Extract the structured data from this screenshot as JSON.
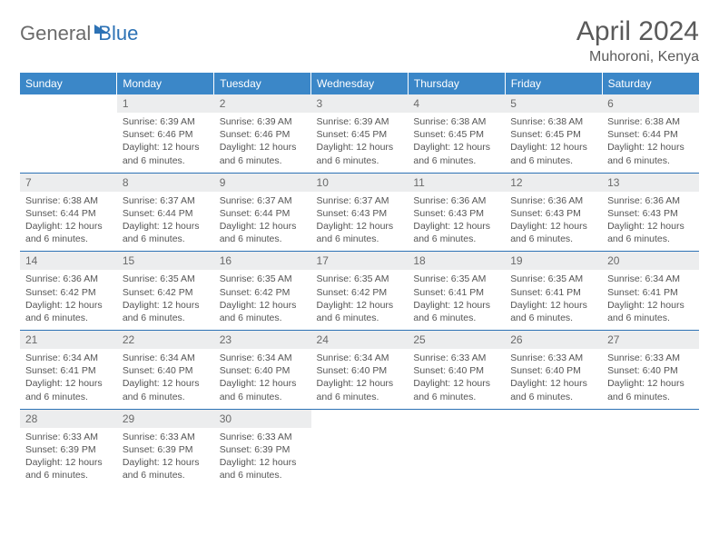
{
  "logo": {
    "part1": "General",
    "part2": "Blue"
  },
  "title": "April 2024",
  "location": "Muhoroni, Kenya",
  "colors": {
    "header_bg": "#3b87c8",
    "header_text": "#ffffff",
    "daynum_bg": "#ecedee",
    "row_border": "#2d72b5",
    "logo_blue": "#2d72b5",
    "text_gray": "#5a5a5a"
  },
  "dayHeaders": [
    "Sunday",
    "Monday",
    "Tuesday",
    "Wednesday",
    "Thursday",
    "Friday",
    "Saturday"
  ],
  "weeks": [
    [
      null,
      {
        "n": "1",
        "sr": "Sunrise: 6:39 AM",
        "ss": "Sunset: 6:46 PM",
        "dl": "Daylight: 12 hours and 6 minutes."
      },
      {
        "n": "2",
        "sr": "Sunrise: 6:39 AM",
        "ss": "Sunset: 6:46 PM",
        "dl": "Daylight: 12 hours and 6 minutes."
      },
      {
        "n": "3",
        "sr": "Sunrise: 6:39 AM",
        "ss": "Sunset: 6:45 PM",
        "dl": "Daylight: 12 hours and 6 minutes."
      },
      {
        "n": "4",
        "sr": "Sunrise: 6:38 AM",
        "ss": "Sunset: 6:45 PM",
        "dl": "Daylight: 12 hours and 6 minutes."
      },
      {
        "n": "5",
        "sr": "Sunrise: 6:38 AM",
        "ss": "Sunset: 6:45 PM",
        "dl": "Daylight: 12 hours and 6 minutes."
      },
      {
        "n": "6",
        "sr": "Sunrise: 6:38 AM",
        "ss": "Sunset: 6:44 PM",
        "dl": "Daylight: 12 hours and 6 minutes."
      }
    ],
    [
      {
        "n": "7",
        "sr": "Sunrise: 6:38 AM",
        "ss": "Sunset: 6:44 PM",
        "dl": "Daylight: 12 hours and 6 minutes."
      },
      {
        "n": "8",
        "sr": "Sunrise: 6:37 AM",
        "ss": "Sunset: 6:44 PM",
        "dl": "Daylight: 12 hours and 6 minutes."
      },
      {
        "n": "9",
        "sr": "Sunrise: 6:37 AM",
        "ss": "Sunset: 6:44 PM",
        "dl": "Daylight: 12 hours and 6 minutes."
      },
      {
        "n": "10",
        "sr": "Sunrise: 6:37 AM",
        "ss": "Sunset: 6:43 PM",
        "dl": "Daylight: 12 hours and 6 minutes."
      },
      {
        "n": "11",
        "sr": "Sunrise: 6:36 AM",
        "ss": "Sunset: 6:43 PM",
        "dl": "Daylight: 12 hours and 6 minutes."
      },
      {
        "n": "12",
        "sr": "Sunrise: 6:36 AM",
        "ss": "Sunset: 6:43 PM",
        "dl": "Daylight: 12 hours and 6 minutes."
      },
      {
        "n": "13",
        "sr": "Sunrise: 6:36 AM",
        "ss": "Sunset: 6:43 PM",
        "dl": "Daylight: 12 hours and 6 minutes."
      }
    ],
    [
      {
        "n": "14",
        "sr": "Sunrise: 6:36 AM",
        "ss": "Sunset: 6:42 PM",
        "dl": "Daylight: 12 hours and 6 minutes."
      },
      {
        "n": "15",
        "sr": "Sunrise: 6:35 AM",
        "ss": "Sunset: 6:42 PM",
        "dl": "Daylight: 12 hours and 6 minutes."
      },
      {
        "n": "16",
        "sr": "Sunrise: 6:35 AM",
        "ss": "Sunset: 6:42 PM",
        "dl": "Daylight: 12 hours and 6 minutes."
      },
      {
        "n": "17",
        "sr": "Sunrise: 6:35 AM",
        "ss": "Sunset: 6:42 PM",
        "dl": "Daylight: 12 hours and 6 minutes."
      },
      {
        "n": "18",
        "sr": "Sunrise: 6:35 AM",
        "ss": "Sunset: 6:41 PM",
        "dl": "Daylight: 12 hours and 6 minutes."
      },
      {
        "n": "19",
        "sr": "Sunrise: 6:35 AM",
        "ss": "Sunset: 6:41 PM",
        "dl": "Daylight: 12 hours and 6 minutes."
      },
      {
        "n": "20",
        "sr": "Sunrise: 6:34 AM",
        "ss": "Sunset: 6:41 PM",
        "dl": "Daylight: 12 hours and 6 minutes."
      }
    ],
    [
      {
        "n": "21",
        "sr": "Sunrise: 6:34 AM",
        "ss": "Sunset: 6:41 PM",
        "dl": "Daylight: 12 hours and 6 minutes."
      },
      {
        "n": "22",
        "sr": "Sunrise: 6:34 AM",
        "ss": "Sunset: 6:40 PM",
        "dl": "Daylight: 12 hours and 6 minutes."
      },
      {
        "n": "23",
        "sr": "Sunrise: 6:34 AM",
        "ss": "Sunset: 6:40 PM",
        "dl": "Daylight: 12 hours and 6 minutes."
      },
      {
        "n": "24",
        "sr": "Sunrise: 6:34 AM",
        "ss": "Sunset: 6:40 PM",
        "dl": "Daylight: 12 hours and 6 minutes."
      },
      {
        "n": "25",
        "sr": "Sunrise: 6:33 AM",
        "ss": "Sunset: 6:40 PM",
        "dl": "Daylight: 12 hours and 6 minutes."
      },
      {
        "n": "26",
        "sr": "Sunrise: 6:33 AM",
        "ss": "Sunset: 6:40 PM",
        "dl": "Daylight: 12 hours and 6 minutes."
      },
      {
        "n": "27",
        "sr": "Sunrise: 6:33 AM",
        "ss": "Sunset: 6:40 PM",
        "dl": "Daylight: 12 hours and 6 minutes."
      }
    ],
    [
      {
        "n": "28",
        "sr": "Sunrise: 6:33 AM",
        "ss": "Sunset: 6:39 PM",
        "dl": "Daylight: 12 hours and 6 minutes."
      },
      {
        "n": "29",
        "sr": "Sunrise: 6:33 AM",
        "ss": "Sunset: 6:39 PM",
        "dl": "Daylight: 12 hours and 6 minutes."
      },
      {
        "n": "30",
        "sr": "Sunrise: 6:33 AM",
        "ss": "Sunset: 6:39 PM",
        "dl": "Daylight: 12 hours and 6 minutes."
      },
      null,
      null,
      null,
      null
    ]
  ]
}
